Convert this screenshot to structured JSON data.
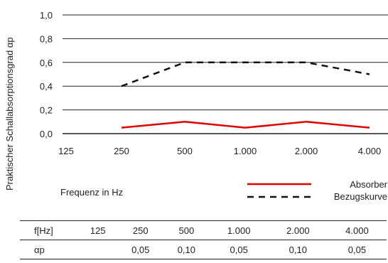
{
  "chart_data": {
    "type": "line",
    "categories": [
      "125",
      "250",
      "500",
      "1.000",
      "2.000",
      "4.000"
    ],
    "series": [
      {
        "name": "Absorber",
        "x": [
          "250",
          "500",
          "1.000",
          "2.000",
          "4.000"
        ],
        "values": [
          0.05,
          0.1,
          0.05,
          0.1,
          0.05
        ],
        "color": "#e00000",
        "style": "solid"
      },
      {
        "name": "Bezugskurve",
        "x": [
          "250",
          "500",
          "1.000",
          "2.000",
          "4.000"
        ],
        "values": [
          0.4,
          0.6,
          0.6,
          0.6,
          0.5
        ],
        "color": "#111111",
        "style": "dashed"
      }
    ],
    "yticks": [
      "0,0",
      "0,2",
      "0,4",
      "0,6",
      "0,8",
      "1,0"
    ],
    "ylim": [
      0,
      1
    ],
    "ylabel": "Praktischer Schallabsorptionsgrad αp",
    "xlabel": "Frequenz in Hz",
    "grid": true,
    "legend": "bottom-right"
  },
  "table": {
    "header": [
      "f[Hz]",
      "125",
      "250",
      "500",
      "1.000",
      "2.000",
      "4.000"
    ],
    "row": [
      "αp",
      "",
      "0,05",
      "0,10",
      "0,05",
      "0,10",
      "0,05"
    ]
  }
}
